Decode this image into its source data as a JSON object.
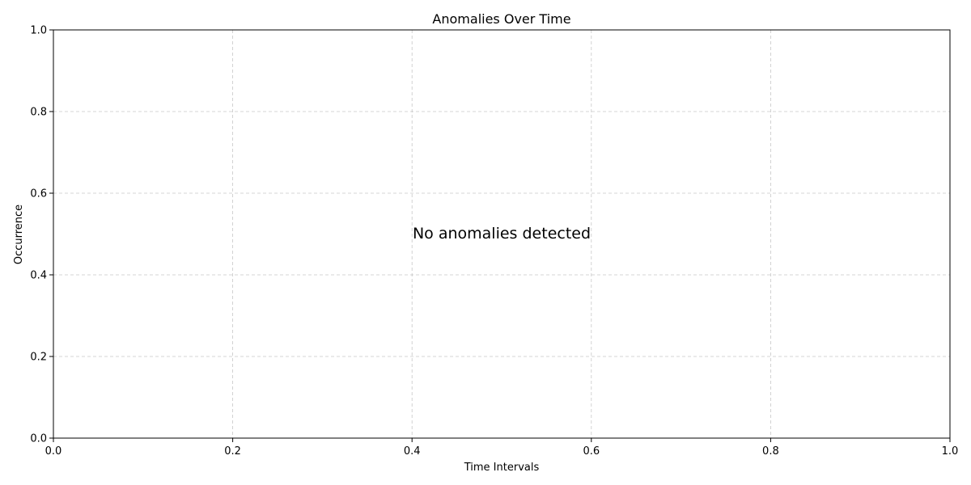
{
  "chart_data": {
    "type": "line",
    "title": "Anomalies Over Time",
    "xlabel": "Time Intervals",
    "ylabel": "Occurrence",
    "xlim": [
      0.0,
      1.0
    ],
    "ylim": [
      0.0,
      1.0
    ],
    "xticks": [
      0.0,
      0.2,
      0.4,
      0.6,
      0.8,
      1.0
    ],
    "xtick_labels": [
      "0.0",
      "0.2",
      "0.4",
      "0.6",
      "0.8",
      "1.0"
    ],
    "yticks": [
      0.0,
      0.2,
      0.4,
      0.6,
      0.8,
      1.0
    ],
    "ytick_labels": [
      "0.0",
      "0.2",
      "0.4",
      "0.6",
      "0.8",
      "1.0"
    ],
    "grid": true,
    "series": [],
    "annotation": "No anomalies detected"
  }
}
